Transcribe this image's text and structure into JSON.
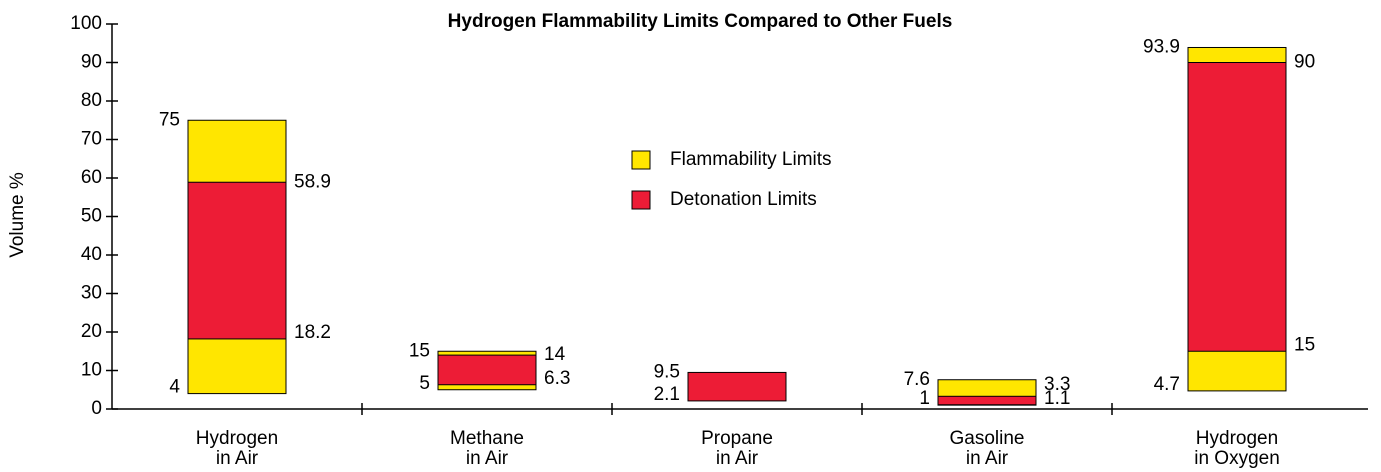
{
  "chart_data": {
    "type": "range_bar",
    "title": "Hydrogen Flammability Limits Compared to Other Fuels",
    "y_label": "Volume %",
    "categories": [
      [
        "Hydrogen",
        "in Air"
      ],
      [
        "Methane",
        "in Air"
      ],
      [
        "Propane",
        "in Air"
      ],
      [
        "Gasoline",
        "in Air"
      ],
      [
        "Hydrogen",
        "in Oxygen"
      ]
    ],
    "series": [
      {
        "name": "Flammability Limits",
        "color": "#ffe600",
        "bar_colors": [
          "#ffe600",
          "#ffe600",
          "#ed1c36",
          "#ffe600",
          "#ffe600"
        ],
        "low": [
          4,
          5,
          2.1,
          1,
          4.7
        ],
        "high": [
          75,
          15,
          9.5,
          7.6,
          93.9
        ]
      },
      {
        "name": "Detonation Limits",
        "color": "#ed1c36",
        "low": [
          18.2,
          6.3,
          null,
          1.1,
          15
        ],
        "high": [
          58.9,
          14,
          null,
          3.3,
          90
        ]
      }
    ],
    "ylim": [
      0,
      100
    ],
    "yticks": [
      0,
      10,
      20,
      30,
      40,
      50,
      60,
      70,
      80,
      90,
      100
    ]
  }
}
